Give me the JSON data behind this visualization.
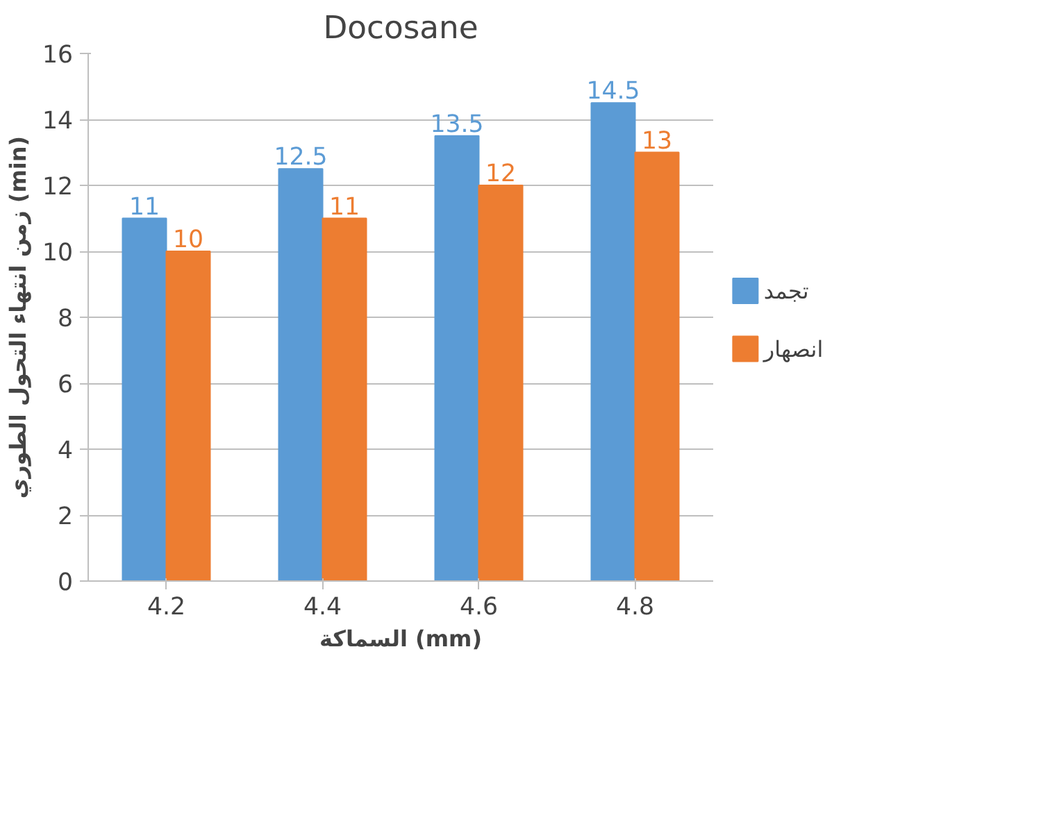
{
  "chart_data": {
    "type": "bar",
    "title": "Docosane",
    "xlabel": "السماكة (mm)",
    "ylabel": "زمن انتهاء التحول الطوري (min)",
    "categories": [
      "4.2",
      "4.4",
      "4.6",
      "4.8"
    ],
    "series": [
      {
        "name": "تجمد",
        "color": "#5b9bd5",
        "values": [
          11,
          12.5,
          13.5,
          14.5
        ]
      },
      {
        "name": "انصهار",
        "color": "#ed7d31",
        "values": [
          10,
          11,
          12,
          13
        ]
      }
    ],
    "ylim": [
      0,
      16
    ],
    "yticks": [
      0,
      2,
      4,
      6,
      8,
      10,
      12,
      14,
      16
    ],
    "grid": "y",
    "legend": "right",
    "data_labels": true
  }
}
